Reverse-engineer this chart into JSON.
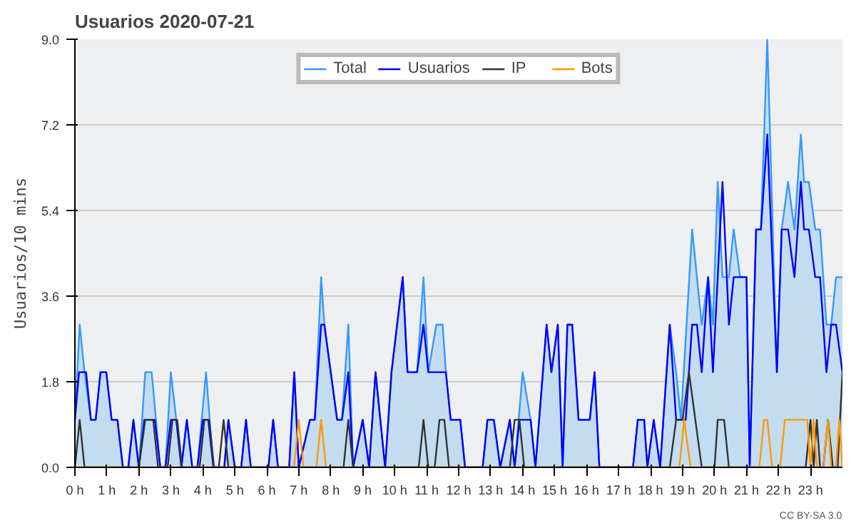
{
  "chart_data": {
    "type": "line",
    "title": "Usuarios  2020-07-21",
    "ylabel": "Usuarios/10 mins",
    "annotations": [
      "CC BY-SA 3.0"
    ],
    "xlim": [
      0,
      24
    ],
    "ylim": [
      0,
      9
    ],
    "xticks": [
      {
        "value": 0,
        "label": "0 h"
      },
      {
        "value": 1,
        "label": "1 h"
      },
      {
        "value": 2,
        "label": "2 h"
      },
      {
        "value": 3,
        "label": "3 h"
      },
      {
        "value": 4,
        "label": "4 h"
      },
      {
        "value": 5,
        "label": "5 h"
      },
      {
        "value": 6,
        "label": "6 h"
      },
      {
        "value": 7,
        "label": "7 h"
      },
      {
        "value": 8,
        "label": "8 h"
      },
      {
        "value": 9,
        "label": "9 h"
      },
      {
        "value": 10,
        "label": "10 h"
      },
      {
        "value": 11,
        "label": "11 h"
      },
      {
        "value": 12,
        "label": "12 h"
      },
      {
        "value": 13,
        "label": "13 h"
      },
      {
        "value": 14,
        "label": "14 h"
      },
      {
        "value": 15,
        "label": "15 h"
      },
      {
        "value": 16,
        "label": "16 h"
      },
      {
        "value": 17,
        "label": "17 h"
      },
      {
        "value": 18,
        "label": "18 h"
      },
      {
        "value": 19,
        "label": "19 h"
      },
      {
        "value": 20,
        "label": "20 h"
      },
      {
        "value": 21,
        "label": "21 h"
      },
      {
        "value": 22,
        "label": "22 h"
      },
      {
        "value": 23,
        "label": "23 h"
      }
    ],
    "yticks": [
      {
        "value": 0,
        "label": "0.0"
      },
      {
        "value": 1.8,
        "label": "1.8"
      },
      {
        "value": 3.6,
        "label": "3.6"
      },
      {
        "value": 5.4,
        "label": "5.4"
      },
      {
        "value": 7.2,
        "label": "7.2"
      },
      {
        "value": 9,
        "label": "9.0"
      }
    ],
    "grid": "y",
    "legend": "top",
    "series": [
      {
        "name": "Total",
        "type": "area",
        "color": "#3399ff",
        "x": [
          0,
          0.15,
          0.3,
          0.5,
          0.65,
          0.8,
          0.98,
          1.15,
          1.33,
          1.5,
          1.67,
          1.83,
          2.0,
          2.2,
          2.4,
          2.67,
          2.83,
          3.0,
          3.17,
          3.33,
          3.5,
          3.67,
          3.83,
          4.1,
          4.33,
          4.67,
          4.8,
          5.0,
          5.2,
          5.35,
          5.5,
          6.05,
          6.2,
          6.35,
          6.7,
          6.86,
          7.0,
          7.35,
          7.5,
          7.7,
          7.8,
          8.2,
          8.35,
          8.55,
          8.7,
          9.0,
          9.2,
          9.4,
          9.7,
          9.9,
          10.25,
          10.4,
          10.7,
          10.9,
          11.05,
          11.3,
          11.5,
          11.6,
          11.75,
          12.05,
          12.2,
          12.75,
          12.9,
          13.1,
          13.3,
          13.6,
          13.75,
          14.0,
          14.25,
          14.4,
          14.75,
          14.9,
          15.1,
          15.25,
          15.4,
          15.55,
          15.75,
          16.1,
          16.25,
          16.4,
          17.45,
          17.6,
          17.8,
          17.9,
          18.1,
          18.3,
          18.4,
          18.6,
          18.8,
          18.95,
          19.3,
          19.6,
          19.8,
          19.95,
          20.1,
          20.25,
          20.45,
          20.6,
          20.8,
          21.0,
          21.1,
          21.3,
          21.45,
          21.65,
          21.95,
          22.1,
          22.3,
          22.5,
          22.7,
          22.8,
          22.95,
          23.15,
          23.3,
          23.5,
          23.65,
          23.8,
          24
        ],
        "values": [
          1,
          3,
          2,
          1,
          1,
          2,
          2,
          1,
          1,
          0,
          0,
          1,
          0,
          2,
          2,
          0,
          0,
          2,
          1,
          0,
          1,
          0,
          0,
          2,
          0,
          0,
          1,
          0,
          0,
          1,
          0,
          0,
          1,
          0,
          0,
          2,
          0,
          1,
          1,
          4,
          3,
          1,
          1,
          3,
          0,
          1,
          0,
          2,
          0,
          2,
          4,
          2,
          2,
          4,
          2,
          3,
          3,
          2,
          1,
          1,
          0,
          0,
          1,
          1,
          0,
          1,
          0,
          2,
          1,
          0,
          3,
          2,
          3,
          0,
          3,
          3,
          1,
          1,
          2,
          0,
          0,
          1,
          1,
          0,
          1,
          0,
          1,
          3,
          2,
          1,
          5,
          3,
          4,
          3,
          6,
          4,
          4,
          5,
          4,
          4,
          0,
          5,
          5,
          9,
          2,
          5,
          6,
          5,
          7,
          6,
          6,
          5,
          5,
          3,
          3,
          4,
          4
        ]
      },
      {
        "name": "Usuarios",
        "color": "#0000ff",
        "x": [
          0,
          0.13,
          0.35,
          0.5,
          0.65,
          0.8,
          0.98,
          1.15,
          1.33,
          1.5,
          1.67,
          1.83,
          2.0,
          2.17,
          2.5,
          2.67,
          2.83,
          3.0,
          3.17,
          3.33,
          3.5,
          3.67,
          3.83,
          4.0,
          4.17,
          4.33,
          4.67,
          4.8,
          5.0,
          5.2,
          5.35,
          5.5,
          6.05,
          6.2,
          6.35,
          6.7,
          6.86,
          7.0,
          7.35,
          7.5,
          7.7,
          7.8,
          8.2,
          8.35,
          8.55,
          8.7,
          9.0,
          9.2,
          9.4,
          9.7,
          9.9,
          10.25,
          10.4,
          10.7,
          10.9,
          11.05,
          11.6,
          11.75,
          12.05,
          12.2,
          12.75,
          12.9,
          13.1,
          13.3,
          13.6,
          13.75,
          13.9,
          14.25,
          14.4,
          14.75,
          14.9,
          15.1,
          15.25,
          15.4,
          15.55,
          15.75,
          16.1,
          16.25,
          16.4,
          17.45,
          17.6,
          17.8,
          17.9,
          18.1,
          18.3,
          18.4,
          18.6,
          18.8,
          19.1,
          19.3,
          19.45,
          19.6,
          19.8,
          19.95,
          20.1,
          20.25,
          20.45,
          20.6,
          21.0,
          21.1,
          21.3,
          21.45,
          21.65,
          21.95,
          22.1,
          22.3,
          22.5,
          22.7,
          22.8,
          22.95,
          23.15,
          23.3,
          23.5,
          23.65,
          23.8,
          24
        ],
        "values": [
          1,
          2,
          2,
          1,
          1,
          2,
          2,
          1,
          1,
          0,
          0,
          1,
          0,
          1,
          1,
          0,
          0,
          1,
          1,
          0,
          1,
          0,
          0,
          1,
          1,
          0,
          0,
          1,
          0,
          0,
          1,
          0,
          0,
          1,
          0,
          0,
          2,
          0,
          1,
          1,
          3,
          3,
          1,
          1,
          2,
          0,
          1,
          0,
          2,
          0,
          2,
          4,
          2,
          2,
          3,
          2,
          2,
          1,
          1,
          0,
          0,
          1,
          1,
          0,
          1,
          0,
          1,
          1,
          0,
          3,
          2,
          3,
          0,
          3,
          3,
          1,
          1,
          2,
          0,
          0,
          1,
          1,
          0,
          1,
          0,
          1,
          3,
          1,
          1,
          3,
          3,
          2,
          4,
          2,
          4,
          6,
          3,
          4,
          4,
          0,
          5,
          5,
          7,
          2,
          5,
          5,
          4,
          6,
          5,
          5,
          4,
          4,
          2,
          3,
          3,
          2
        ]
      },
      {
        "name": "IP",
        "color": "#333333",
        "x": [
          0,
          0.15,
          0.3,
          2.0,
          2.2,
          2.45,
          2.6,
          2.9,
          3.05,
          3.2,
          3.35,
          3.9,
          4.05,
          4.2,
          4.35,
          4.5,
          4.65,
          4.8,
          8.4,
          8.55,
          8.7,
          10.75,
          10.9,
          11.05,
          11.25,
          11.4,
          11.55,
          11.7,
          13.6,
          13.75,
          13.9,
          14.05,
          18.6,
          18.8,
          19.0,
          19.2,
          19.6,
          20.0,
          20.1,
          20.3,
          20.45,
          22.85,
          23.0,
          23.1,
          23.2,
          23.3,
          23.4,
          23.55,
          23.7,
          23.85,
          24
        ],
        "values": [
          0,
          1,
          0,
          0,
          1,
          1,
          0,
          0,
          1,
          1,
          0,
          0,
          1,
          1,
          0,
          0,
          1,
          0,
          0,
          1,
          0,
          0,
          1,
          0,
          0,
          1,
          1,
          0,
          0,
          1,
          1,
          0,
          0,
          1,
          1,
          2,
          0,
          0,
          1,
          1,
          0,
          0,
          1,
          0,
          1,
          0,
          0,
          1,
          0,
          0,
          2
        ]
      },
      {
        "name": "Bots",
        "color": "#ff9900",
        "x": [
          0,
          6.85,
          7.0,
          7.15,
          7.55,
          7.7,
          7.85,
          18.9,
          19.05,
          19.25,
          21.4,
          21.55,
          21.65,
          21.8,
          22.05,
          22.2,
          22.9,
          23.0,
          23.1,
          23.2,
          23.4,
          23.55,
          23.65,
          23.8,
          23.9,
          24
        ],
        "values": [
          0,
          0,
          1,
          0,
          0,
          1,
          0,
          0,
          1,
          0,
          0,
          1,
          1,
          0,
          0,
          1,
          1,
          0,
          1,
          0,
          0,
          1,
          0,
          0,
          1,
          0
        ]
      }
    ]
  }
}
